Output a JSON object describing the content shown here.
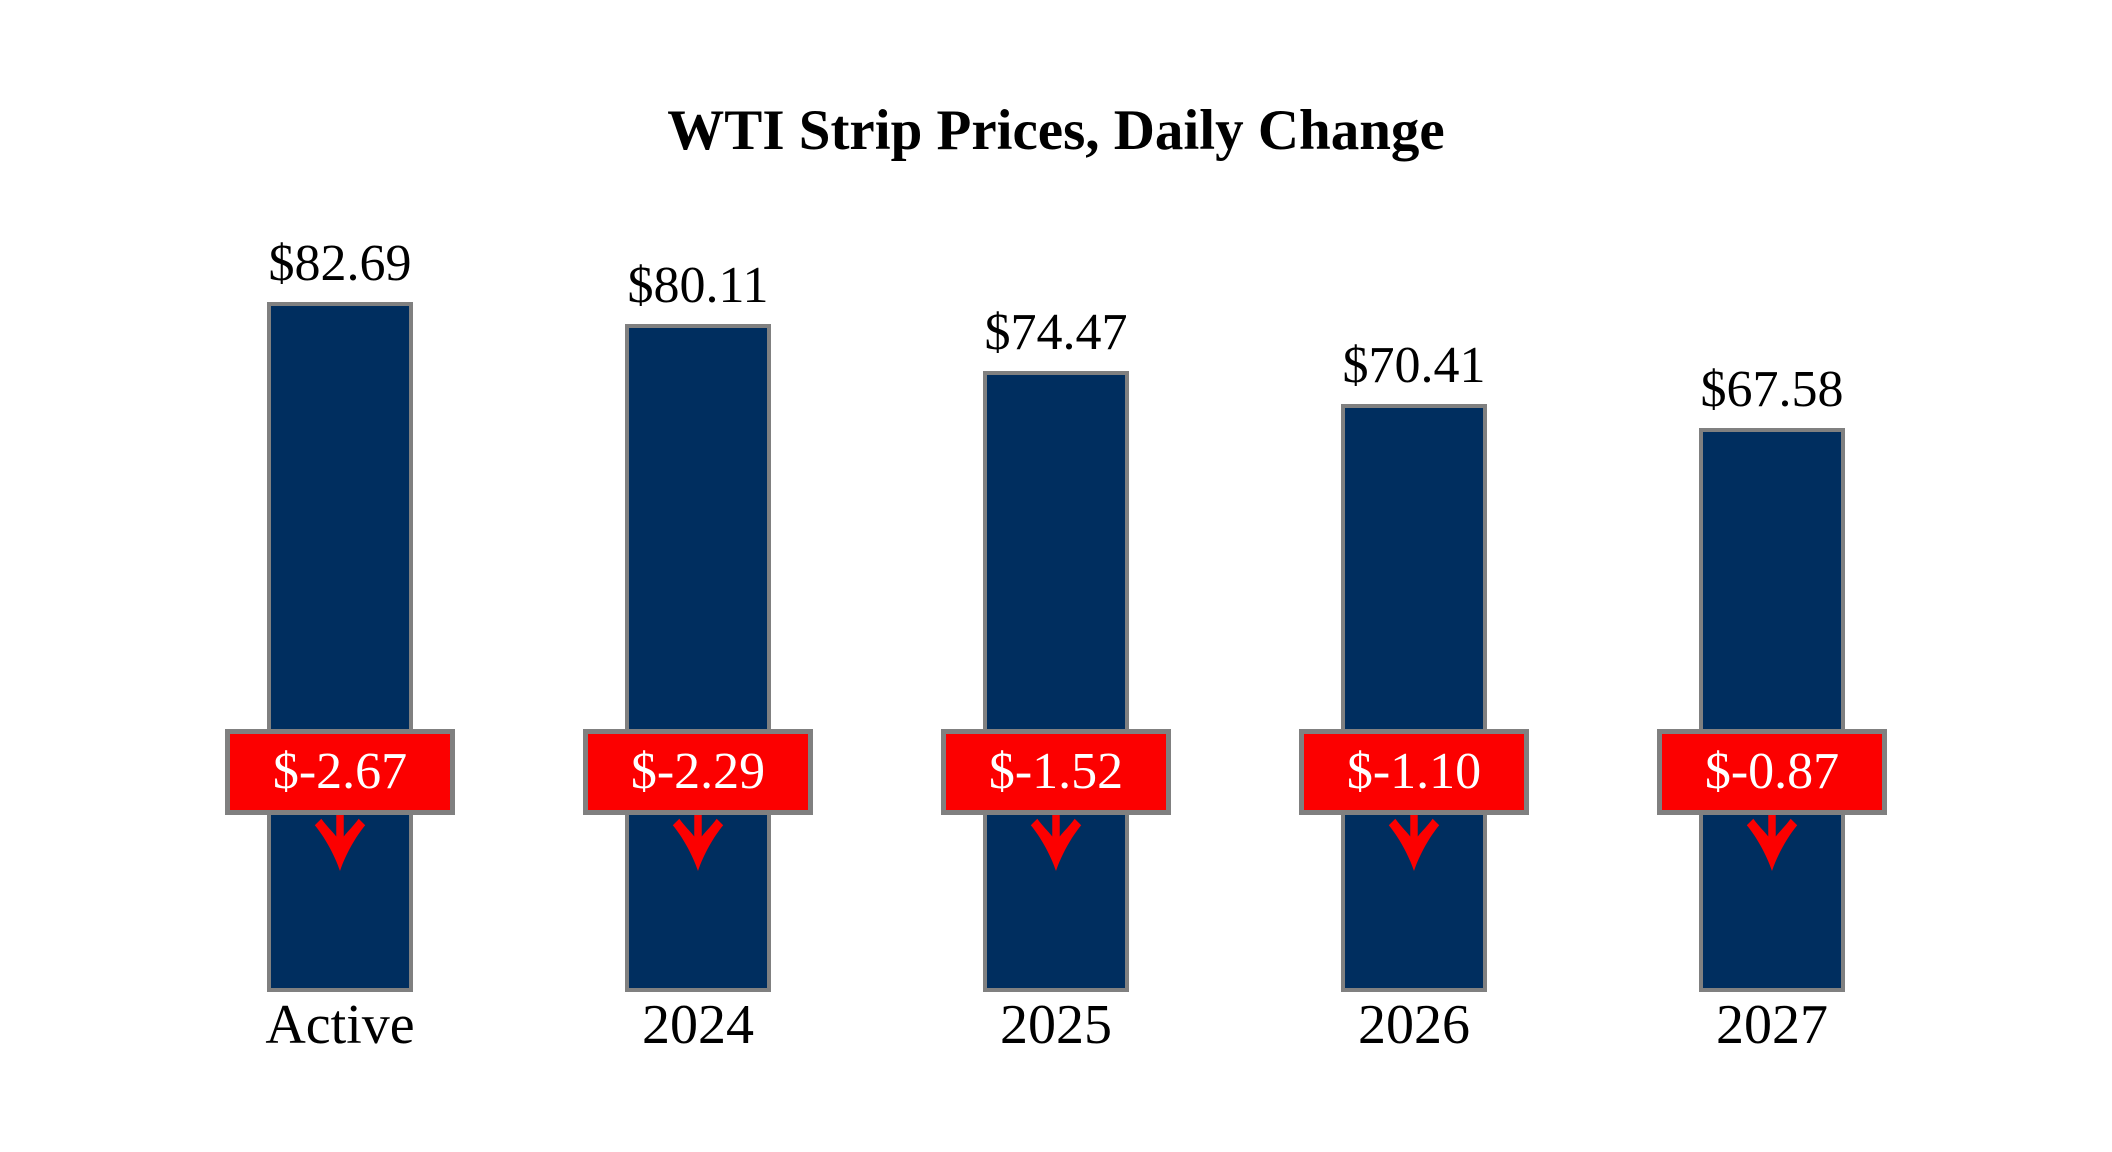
{
  "chart_data": {
    "type": "bar",
    "title": "WTI Strip Prices, Daily Change",
    "categories": [
      "Active",
      "2024",
      "2025",
      "2026",
      "2027"
    ],
    "series": [
      {
        "name": "WTI Strip Price",
        "values": [
          82.69,
          80.11,
          74.47,
          70.41,
          67.58
        ]
      },
      {
        "name": "Daily Change",
        "values": [
          -2.67,
          -2.29,
          -1.52,
          -1.1,
          -0.87
        ]
      }
    ],
    "ylim": [
      0,
      82.69
    ],
    "grid": false,
    "axes_shown": false,
    "legend_position": "none",
    "colors": {
      "bar_fill": "#002E5F",
      "bar_border": "#808080",
      "change_fill": "#FC0000",
      "change_border": "#808080",
      "change_text": "#FFFFFF",
      "label_text": "#000000",
      "background": "#FFFFFF"
    },
    "bars": [
      {
        "category": "Active",
        "value": 82.69,
        "value_label": "$82.69",
        "change": -2.67,
        "change_label": "$-2.67"
      },
      {
        "category": "2024",
        "value": 80.11,
        "value_label": "$80.11",
        "change": -2.29,
        "change_label": "$-2.29"
      },
      {
        "category": "2025",
        "value": 74.47,
        "value_label": "$74.47",
        "change": -1.52,
        "change_label": "$-1.52"
      },
      {
        "category": "2026",
        "value": 70.41,
        "value_label": "$70.41",
        "change": -1.1,
        "change_label": "$-1.10"
      },
      {
        "category": "2027",
        "value": 67.58,
        "value_label": "$67.58",
        "change": -0.87,
        "change_label": "$-0.87"
      }
    ]
  }
}
